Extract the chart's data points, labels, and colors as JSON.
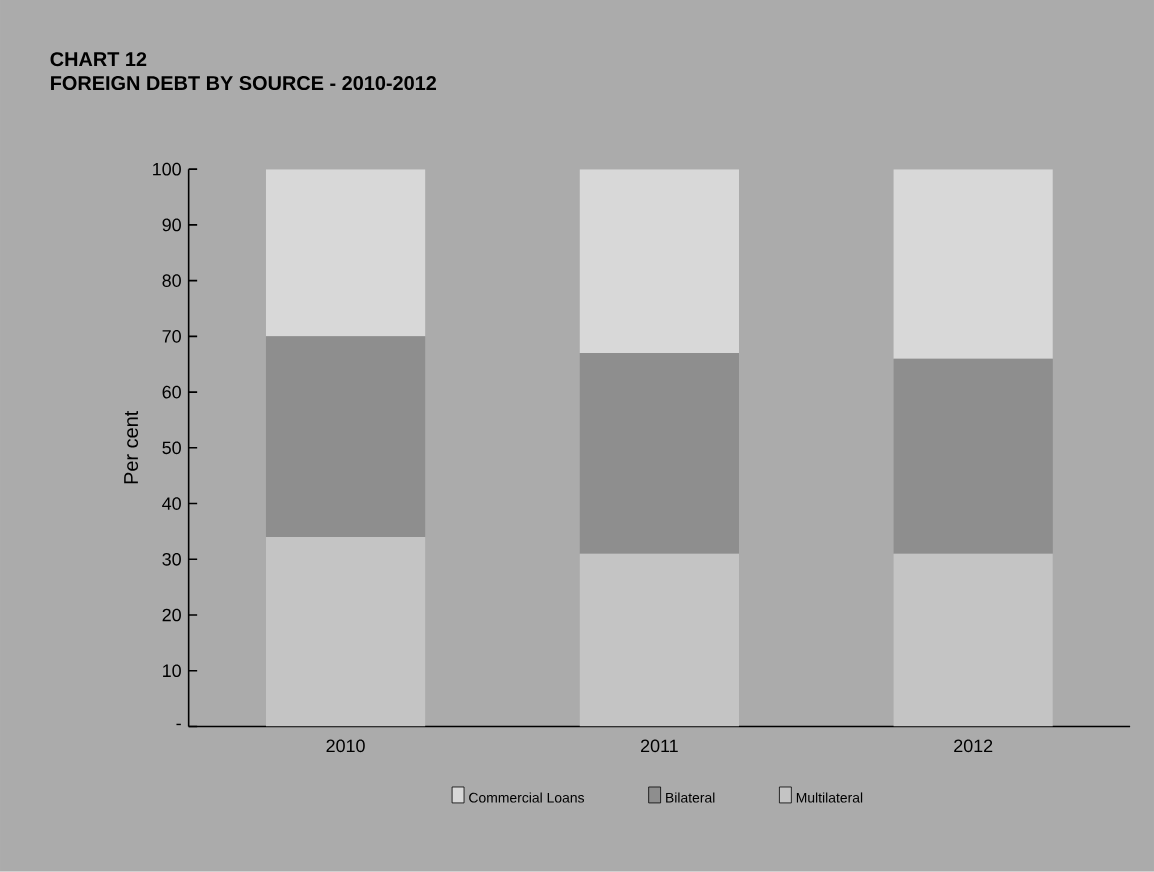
{
  "chart_data": {
    "type": "bar",
    "title": "CHART 12\nFOREIGN DEBT BY SOURCE - 2010-2012",
    "ylabel": "Per cent",
    "categories": [
      "2010",
      "2011",
      "2012"
    ],
    "series": [
      {
        "name": "Multilateral",
        "color": "#c4c4c4",
        "values": [
          34,
          31,
          31
        ]
      },
      {
        "name": "Bilateral",
        "color": "#8e8e8e",
        "values": [
          36,
          36,
          35
        ]
      },
      {
        "name": "Commercial Loans",
        "color": "#d8d8d8",
        "values": [
          30,
          33,
          34
        ]
      }
    ],
    "stacked": true,
    "ylim": [
      0,
      100
    ],
    "yticks": [
      {
        "value": 0,
        "label": "-"
      },
      10,
      20,
      30,
      40,
      50,
      60,
      70,
      80,
      90,
      100
    ],
    "grid": false,
    "legend": "bottom"
  }
}
